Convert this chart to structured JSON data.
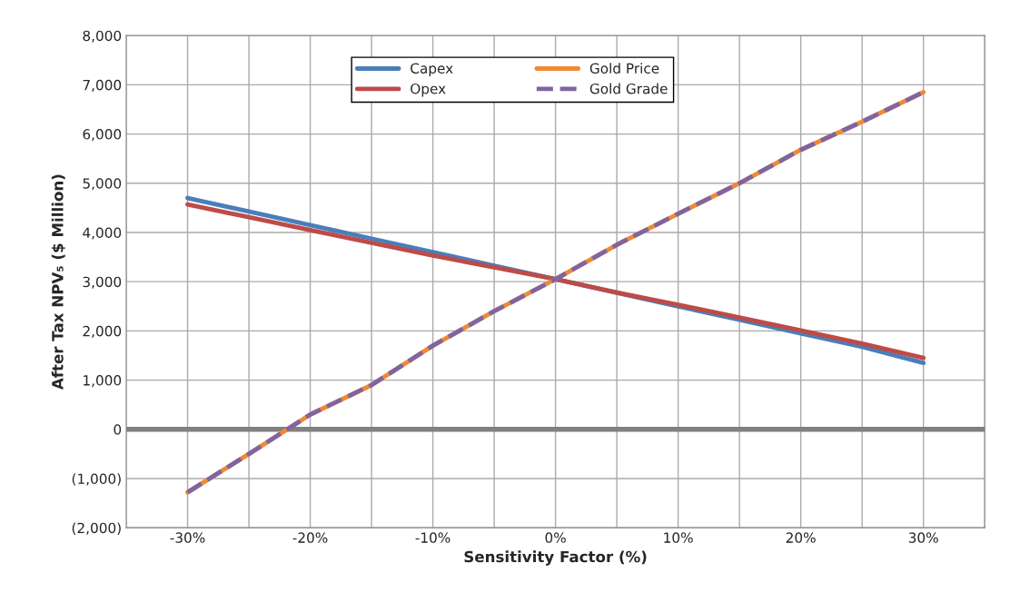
{
  "chart_data": {
    "type": "line",
    "xlabel": "Sensitivity Factor (%)",
    "ylabel": "After Tax NPV₅ ($ Million)",
    "x": [
      -30,
      -25,
      -20,
      -15,
      -10,
      -5,
      0,
      5,
      10,
      15,
      20,
      25,
      30
    ],
    "series": [
      {
        "name": "Capex",
        "color": "#4a7ebb",
        "line_style": "solid",
        "values": [
          4700,
          4425,
          4150,
          3875,
          3600,
          3325,
          3050,
          2775,
          2500,
          2225,
          1950,
          1675,
          1350
        ]
      },
      {
        "name": "Opex",
        "color": "#be4b48",
        "line_style": "solid",
        "values": [
          4570,
          4310,
          4050,
          3790,
          3530,
          3290,
          3050,
          2780,
          2530,
          2270,
          2010,
          1740,
          1450
        ]
      },
      {
        "name": "Gold Price",
        "color": "#f08a32",
        "line_style": "solid",
        "values": [
          -1280,
          -500,
          300,
          900,
          1700,
          2400,
          3050,
          3750,
          4380,
          5000,
          5680,
          6250,
          6850
        ]
      },
      {
        "name": "Gold Grade",
        "color": "#8064a2",
        "line_style": "dashed",
        "values": [
          -1280,
          -500,
          300,
          900,
          1700,
          2400,
          3050,
          3750,
          4380,
          5000,
          5680,
          6250,
          6850
        ]
      }
    ],
    "xlim": [
      -35,
      35
    ],
    "xticks": [
      {
        "value": -35,
        "label": null
      },
      {
        "value": -30,
        "label": "-30%"
      },
      {
        "value": -25,
        "label": null
      },
      {
        "value": -20,
        "label": "-20%"
      },
      {
        "value": -15,
        "label": null
      },
      {
        "value": -10,
        "label": "-10%"
      },
      {
        "value": -5,
        "label": null
      },
      {
        "value": 0,
        "label": "0%"
      },
      {
        "value": 5,
        "label": null
      },
      {
        "value": 10,
        "label": "10%"
      },
      {
        "value": 15,
        "label": null
      },
      {
        "value": 20,
        "label": "20%"
      },
      {
        "value": 25,
        "label": null
      },
      {
        "value": 30,
        "label": "30%"
      },
      {
        "value": 35,
        "label": null
      }
    ],
    "ylim": [
      -2000,
      8000
    ],
    "yticks": [
      {
        "value": -2000,
        "label": "(2,000)"
      },
      {
        "value": -1000,
        "label": "(1,000)"
      },
      0,
      {
        "value": 1000,
        "label": "1,000"
      },
      {
        "value": 2000,
        "label": "2,000"
      },
      {
        "value": 3000,
        "label": "3,000"
      },
      {
        "value": 4000,
        "label": "4,000"
      },
      {
        "value": 5000,
        "label": "5,000"
      },
      {
        "value": 6000,
        "label": "6,000"
      },
      {
        "value": 7000,
        "label": "7,000"
      },
      {
        "value": 8000,
        "label": "8,000"
      }
    ],
    "ref_lines": [
      {
        "axis": "y",
        "value": 0,
        "color": "#808080"
      }
    ],
    "grid": true,
    "legend": "top"
  }
}
